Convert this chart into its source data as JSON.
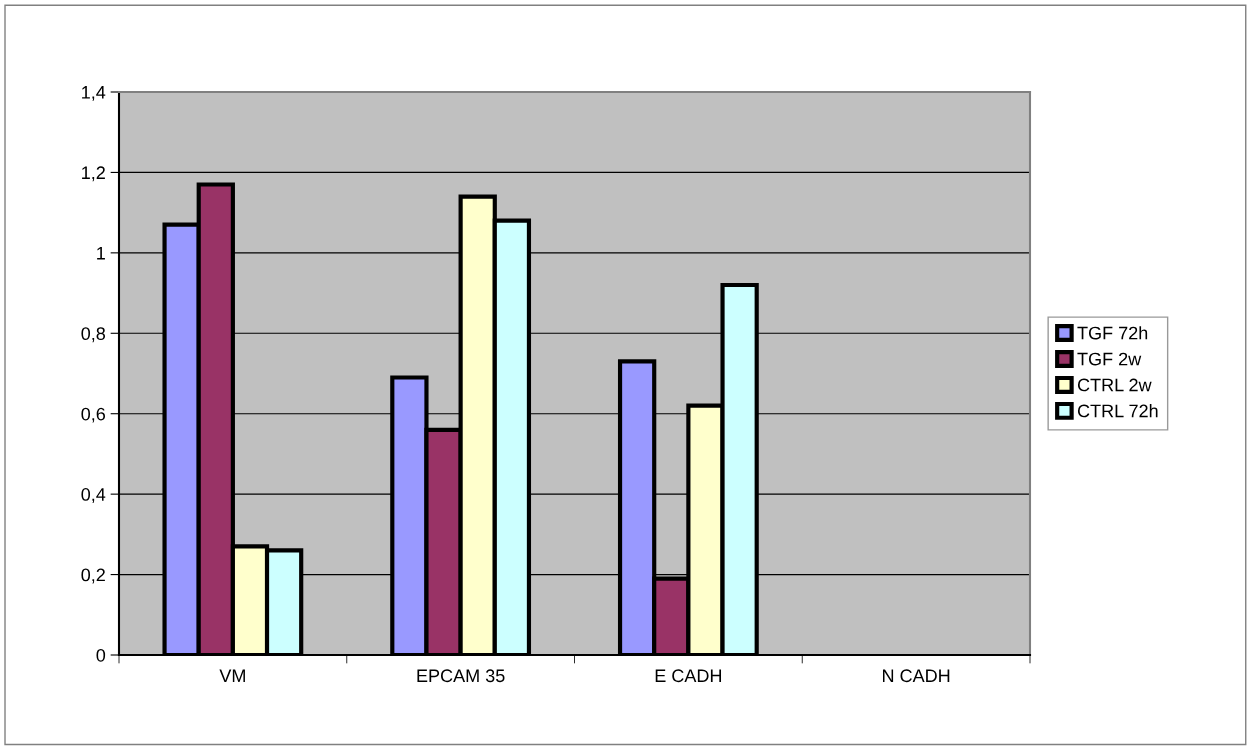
{
  "chart_data": {
    "type": "bar",
    "categories": [
      "VM",
      "EPCAM 35",
      "E CADH",
      "N CADH"
    ],
    "series": [
      {
        "name": "TGF 72h",
        "color": "#9999ff",
        "values": [
          1.07,
          0.69,
          0.73,
          null
        ]
      },
      {
        "name": "TGF 2w",
        "color": "#993366",
        "values": [
          1.17,
          0.56,
          0.19,
          null
        ]
      },
      {
        "name": "CTRL 2w",
        "color": "#ffffcc",
        "values": [
          0.27,
          1.14,
          0.62,
          null
        ]
      },
      {
        "name": "CTRL 72h",
        "color": "#ccffff",
        "values": [
          0.26,
          1.08,
          0.92,
          null
        ]
      }
    ],
    "ylim": [
      0,
      1.4
    ],
    "yticks": [
      0,
      {
        "value": 0.2,
        "label": "0,2"
      },
      {
        "value": 0.4,
        "label": "0,4"
      },
      {
        "value": 0.6,
        "label": "0,6"
      },
      {
        "value": 0.8,
        "label": "0,8"
      },
      1,
      {
        "value": 1.2,
        "label": "1,2"
      },
      {
        "value": 1.4,
        "label": "1,4"
      }
    ],
    "grid": "y",
    "legend": "right"
  }
}
